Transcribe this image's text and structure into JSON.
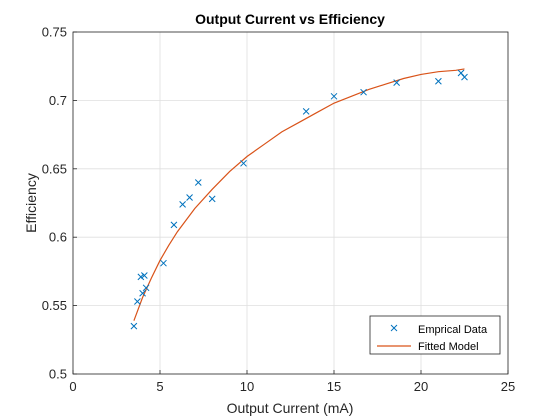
{
  "chart_data": {
    "type": "scatter",
    "title": "Output Current vs Efficiency",
    "xlabel": "Output Current (mA)",
    "ylabel": "Efficiency",
    "xlim": [
      0,
      25
    ],
    "ylim": [
      0.5,
      0.75
    ],
    "x_ticks": [
      "0",
      "5",
      "10",
      "15",
      "20",
      "25"
    ],
    "y_ticks": [
      "0.5",
      "0.55",
      "0.6",
      "0.65",
      "0.7",
      "0.75"
    ],
    "grid": true,
    "legend_position": "bottom-right",
    "series": [
      {
        "name": "Emprical Data",
        "kind": "scatter",
        "marker": "x",
        "color": "#0072BD",
        "x": [
          3.5,
          3.7,
          3.9,
          4.0,
          4.1,
          4.2,
          5.2,
          5.8,
          6.3,
          6.7,
          7.2,
          8.0,
          9.8,
          13.4,
          15.0,
          16.7,
          18.6,
          21.0,
          22.3,
          22.5
        ],
        "y": [
          0.535,
          0.553,
          0.571,
          0.559,
          0.572,
          0.563,
          0.581,
          0.609,
          0.624,
          0.629,
          0.64,
          0.628,
          0.654,
          0.692,
          0.703,
          0.706,
          0.713,
          0.714,
          0.72,
          0.717
        ]
      },
      {
        "name": "Fitted Model",
        "kind": "line",
        "color": "#D95319",
        "x": [
          3.5,
          4.0,
          4.5,
          5.0,
          5.5,
          6.0,
          7.0,
          8.0,
          9.0,
          10.0,
          11.0,
          12.0,
          13.0,
          14.0,
          15.0,
          16.0,
          17.0,
          18.0,
          19.0,
          20.0,
          21.0,
          22.0,
          22.5
        ],
        "y": [
          0.539,
          0.556,
          0.57,
          0.583,
          0.594,
          0.604,
          0.621,
          0.635,
          0.648,
          0.659,
          0.668,
          0.677,
          0.684,
          0.691,
          0.698,
          0.703,
          0.708,
          0.712,
          0.716,
          0.719,
          0.721,
          0.722,
          0.723
        ]
      }
    ]
  }
}
